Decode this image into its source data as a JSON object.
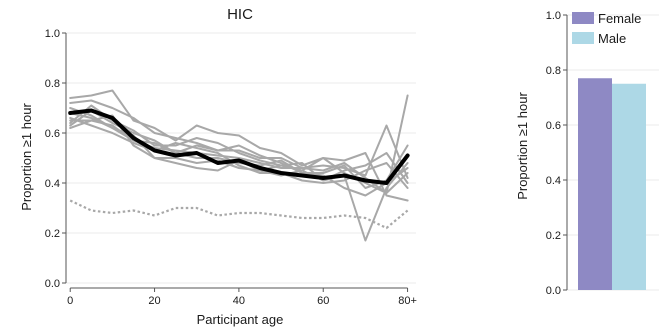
{
  "chart_data": [
    {
      "type": "line",
      "title": "HIC",
      "xlabel": "Participant age",
      "ylabel": "Proportion ≥1 hour",
      "xlim": [
        -1,
        82
      ],
      "ylim": [
        0,
        1.0
      ],
      "xticks": [
        0,
        20,
        40,
        60,
        80
      ],
      "xtick_labels": [
        "0",
        "20",
        "40",
        "60",
        "80+"
      ],
      "yticks": [
        0,
        0.2,
        0.4,
        0.6,
        0.8,
        1.0
      ],
      "ytick_labels": [
        "0.0",
        "0.2",
        "0.4",
        "0.6",
        "0.8",
        "1.0"
      ],
      "grid": "horizontal",
      "x": [
        0,
        5,
        10,
        15,
        20,
        25,
        30,
        35,
        40,
        45,
        50,
        55,
        60,
        65,
        70,
        75,
        80
      ],
      "series": [
        {
          "style": "bold",
          "color": "#000000",
          "values": [
            0.68,
            0.69,
            0.66,
            0.58,
            0.53,
            0.51,
            0.52,
            0.48,
            0.49,
            0.46,
            0.44,
            0.43,
            0.42,
            0.43,
            0.41,
            0.4,
            0.51
          ]
        },
        {
          "style": "dotted",
          "color": "#a8a8a8",
          "values": [
            0.33,
            0.29,
            0.28,
            0.29,
            0.27,
            0.3,
            0.3,
            0.27,
            0.28,
            0.28,
            0.27,
            0.26,
            0.26,
            0.27,
            0.26,
            0.22,
            0.29
          ]
        },
        {
          "style": "thin",
          "color": "#a8a8a8",
          "values": [
            0.74,
            0.75,
            0.77,
            0.65,
            0.62,
            0.57,
            0.63,
            0.6,
            0.59,
            0.54,
            0.52,
            0.47,
            0.5,
            0.44,
            0.4,
            0.36,
            0.75
          ]
        },
        {
          "style": "thin",
          "color": "#a8a8a8",
          "values": [
            0.72,
            0.73,
            0.7,
            0.66,
            0.6,
            0.58,
            0.56,
            0.53,
            0.53,
            0.5,
            0.5,
            0.46,
            0.47,
            0.46,
            0.43,
            0.63,
            0.42
          ]
        },
        {
          "style": "thin",
          "color": "#a8a8a8",
          "values": [
            0.68,
            0.66,
            0.62,
            0.57,
            0.56,
            0.52,
            0.5,
            0.5,
            0.48,
            0.47,
            0.49,
            0.44,
            0.44,
            0.47,
            0.38,
            0.41,
            0.55
          ]
        },
        {
          "style": "thin",
          "color": "#a8a8a8",
          "values": [
            0.65,
            0.65,
            0.67,
            0.55,
            0.5,
            0.5,
            0.48,
            0.49,
            0.46,
            0.45,
            0.47,
            0.48,
            0.41,
            0.43,
            0.17,
            0.38,
            0.48
          ]
        },
        {
          "style": "thin",
          "color": "#a8a8a8",
          "values": [
            0.64,
            0.71,
            0.65,
            0.61,
            0.55,
            0.55,
            0.58,
            0.56,
            0.52,
            0.49,
            0.47,
            0.45,
            0.5,
            0.49,
            0.52,
            0.35,
            0.33
          ]
        },
        {
          "style": "thin",
          "color": "#a8a8a8",
          "values": [
            0.62,
            0.65,
            0.63,
            0.57,
            0.54,
            0.53,
            0.52,
            0.51,
            0.5,
            0.48,
            0.46,
            0.46,
            0.45,
            0.48,
            0.42,
            0.36,
            0.44
          ]
        },
        {
          "style": "thin",
          "color": "#a8a8a8",
          "values": [
            0.7,
            0.67,
            0.62,
            0.59,
            0.5,
            0.48,
            0.46,
            0.45,
            0.49,
            0.45,
            0.43,
            0.45,
            0.41,
            0.45,
            0.47,
            0.52,
            0.4
          ]
        },
        {
          "style": "thin",
          "color": "#a8a8a8",
          "values": [
            0.66,
            0.63,
            0.6,
            0.56,
            0.53,
            0.56,
            0.54,
            0.52,
            0.47,
            0.44,
            0.44,
            0.41,
            0.4,
            0.41,
            0.45,
            0.48,
            0.38
          ]
        },
        {
          "style": "thin",
          "color": "#a8a8a8",
          "values": [
            0.63,
            0.69,
            0.64,
            0.6,
            0.57,
            0.52,
            0.55,
            0.53,
            0.55,
            0.51,
            0.48,
            0.44,
            0.43,
            0.38,
            0.35,
            0.4,
            0.46
          ]
        }
      ]
    },
    {
      "type": "bar",
      "title": "",
      "xlabel": "",
      "ylabel": "Proportion ≥1 hour",
      "ylim": [
        0,
        1.0
      ],
      "yticks": [
        0,
        0.2,
        0.4,
        0.6,
        0.8,
        1.0
      ],
      "ytick_labels": [
        "0.0",
        "0.2",
        "0.4",
        "0.6",
        "0.8",
        "1.0"
      ],
      "grid": "horizontal",
      "legend_position": "top-left",
      "series": [
        {
          "name": "Female",
          "value": 0.77,
          "color": "#8e89c4"
        },
        {
          "name": "Male",
          "value": 0.75,
          "color": "#add8e6"
        }
      ]
    }
  ]
}
